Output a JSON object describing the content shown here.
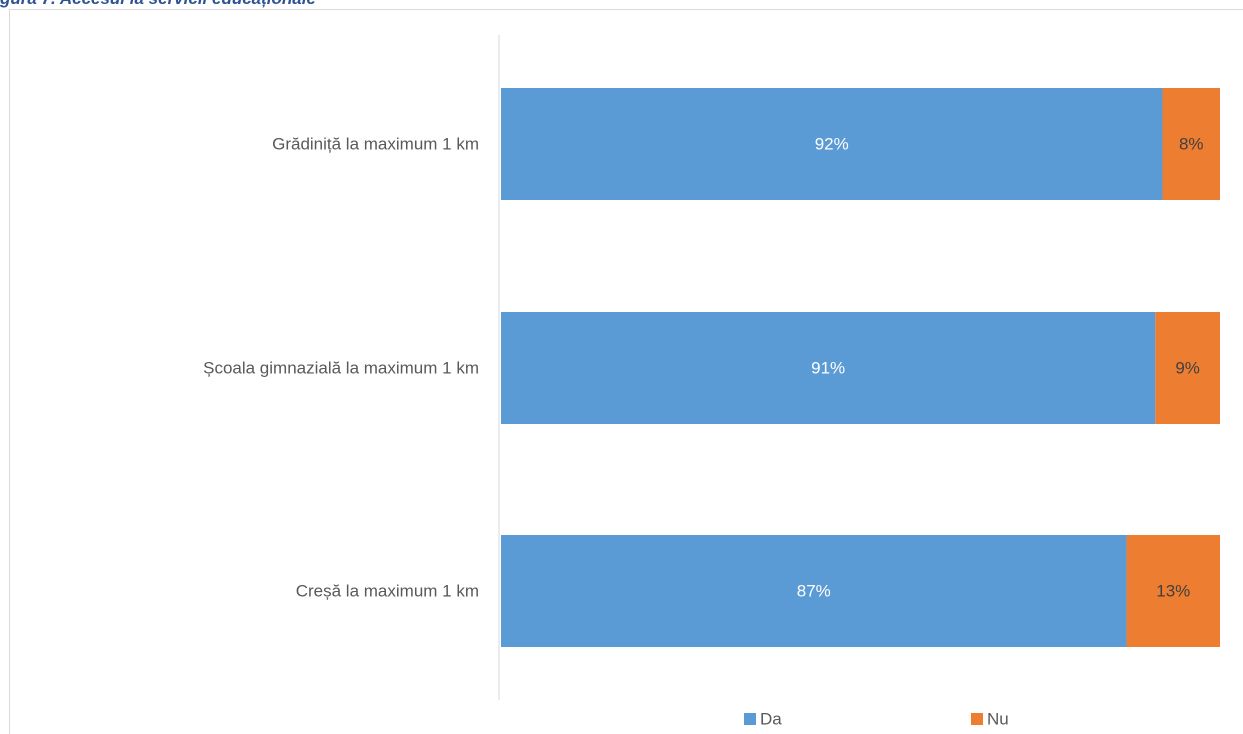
{
  "title": "gura 7. Accesul la servicii educaționale",
  "colors": {
    "title": "#2e5395",
    "da": "#5b9bd5",
    "nu": "#ed7d31",
    "axis": "#d9d9d9",
    "label_on_da": "#ffffff",
    "label_on_nu": "#404040"
  },
  "chart_data": {
    "type": "bar",
    "orientation": "horizontal",
    "stacked": "percent",
    "categories": [
      "Grădiniță la maximum 1 km",
      "Școala gimnazială la maximum 1 km",
      "Creșă la maximum 1 km"
    ],
    "series": [
      {
        "name": "Da",
        "values": [
          92,
          91,
          87
        ],
        "labels": [
          "92%",
          "91%",
          "87%"
        ]
      },
      {
        "name": "Nu",
        "values": [
          8,
          9,
          13
        ],
        "labels": [
          "8%",
          "9%",
          "13%"
        ]
      }
    ],
    "xlim": [
      0,
      100
    ],
    "grid": false,
    "legend": "bottom"
  }
}
